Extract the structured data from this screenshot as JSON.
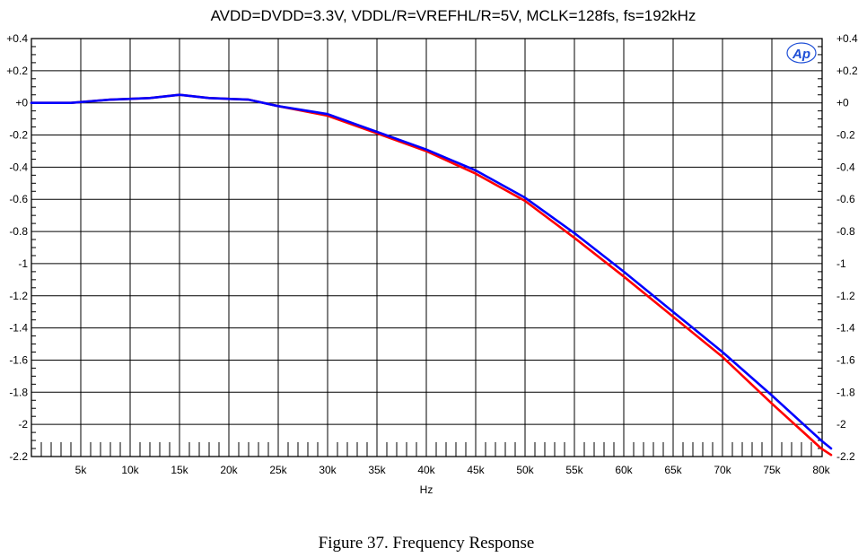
{
  "chart_data": {
    "type": "line",
    "title": "AVDD=DVDD=3.3V, VDDL/R=VREFHL/R=5V, MCLK=128fs, fs=192kHz",
    "xlabel": "Hz",
    "ylabel": "",
    "xlim": [
      0,
      80000
    ],
    "ylim": [
      -2.2,
      0.4
    ],
    "x_ticks": [
      5000,
      10000,
      15000,
      20000,
      25000,
      30000,
      35000,
      40000,
      45000,
      50000,
      55000,
      60000,
      65000,
      70000,
      75000,
      80000
    ],
    "x_tick_labels": [
      "5k",
      "10k",
      "15k",
      "20k",
      "25k",
      "30k",
      "35k",
      "40k",
      "45k",
      "50k",
      "55k",
      "60k",
      "65k",
      "70k",
      "75k",
      "80k"
    ],
    "y_ticks": [
      0.4,
      0.2,
      0,
      -0.2,
      -0.4,
      -0.6,
      -0.8,
      -1,
      -1.2,
      -1.4,
      -1.6,
      -1.8,
      -2,
      -2.2
    ],
    "y_tick_labels_left": [
      "+0.4",
      "+0.2",
      "+0",
      "-0.2",
      "-0.4",
      "-0.6",
      "-0.8",
      "-1",
      "-1.2",
      "-1.4",
      "-1.6",
      "-1.8",
      "-2",
      "-2.2"
    ],
    "y_tick_labels_right": [
      "+0.4",
      "+0.2",
      "+0",
      "-0.2",
      "-0.4",
      "-0.6",
      "-0.8",
      "-1",
      "-1.2",
      "-1.4",
      "-1.6",
      "-1.8",
      "-2",
      "-2.2"
    ],
    "grid": true,
    "series": [
      {
        "color": "#ff0000",
        "x": [
          0,
          4000,
          8000,
          12000,
          15000,
          18000,
          22000,
          25000,
          30000,
          35000,
          40000,
          45000,
          50000,
          55000,
          60000,
          65000,
          70000,
          75000,
          80000,
          81000
        ],
        "y": [
          0.0,
          0.0,
          0.02,
          0.03,
          0.05,
          0.03,
          0.02,
          -0.02,
          -0.08,
          -0.19,
          -0.3,
          -0.44,
          -0.61,
          -0.84,
          -1.08,
          -1.33,
          -1.58,
          -1.87,
          -2.15,
          -2.19
        ]
      },
      {
        "color": "#0000ff",
        "x": [
          0,
          4000,
          8000,
          12000,
          15000,
          18000,
          22000,
          25000,
          30000,
          35000,
          40000,
          45000,
          50000,
          55000,
          60000,
          65000,
          70000,
          75000,
          80000,
          81000
        ],
        "y": [
          0.0,
          0.0,
          0.02,
          0.03,
          0.05,
          0.03,
          0.02,
          -0.02,
          -0.07,
          -0.18,
          -0.29,
          -0.42,
          -0.59,
          -0.81,
          -1.05,
          -1.3,
          -1.55,
          -1.82,
          -2.1,
          -2.15
        ]
      }
    ],
    "caption": "Figure 37. Frequency Response",
    "logo_text": "Ap"
  }
}
